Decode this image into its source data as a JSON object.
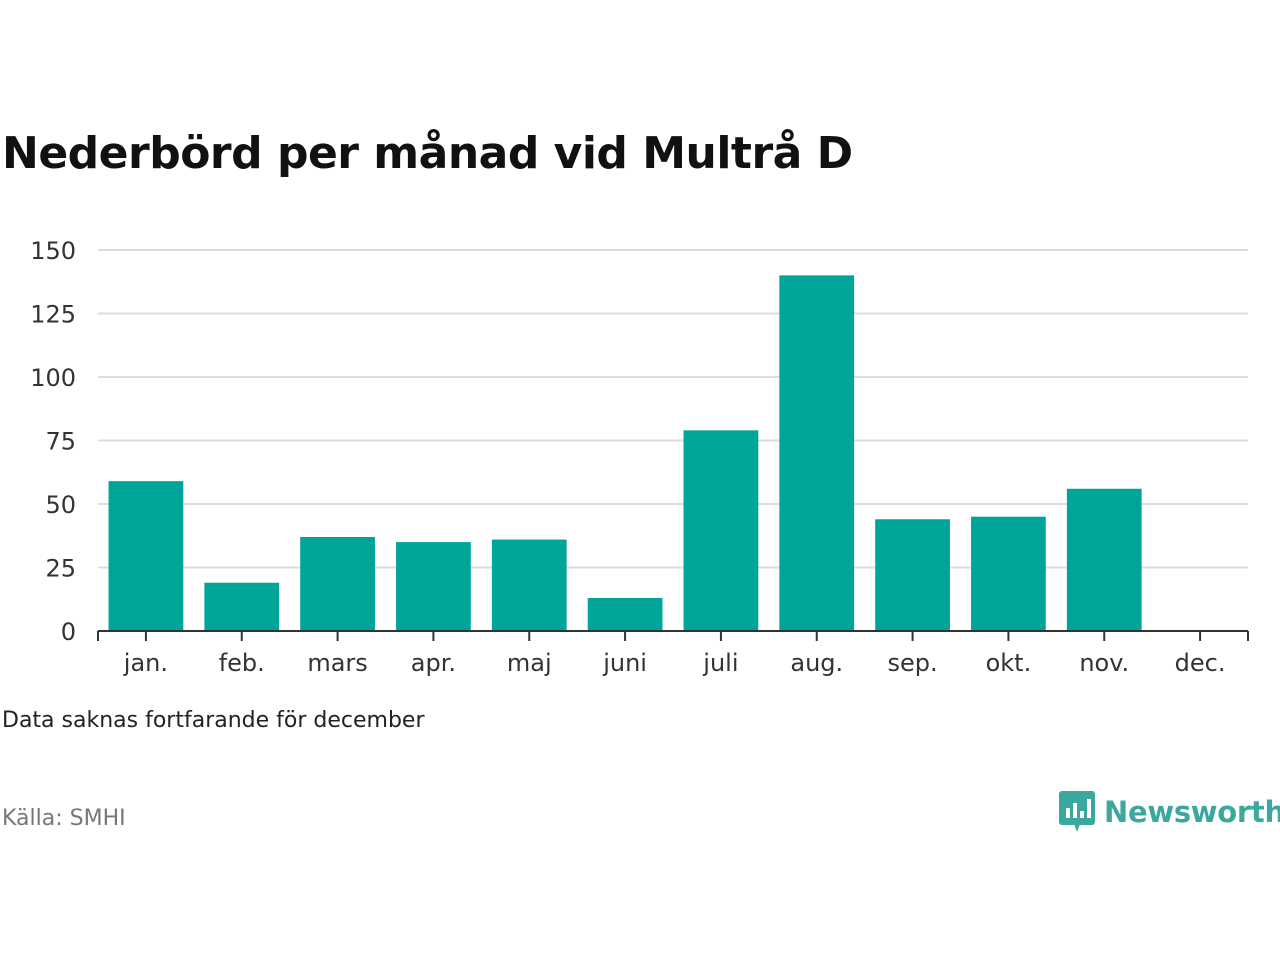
{
  "title": "Nederbörd per månad vid Multrå D",
  "note": "Data saknas fortfarande för december",
  "source": "Källa: SMHI",
  "brand": {
    "name": "Newsworthy",
    "icon": "newsworthy-logo-icon",
    "color": "#3aa89c"
  },
  "chart_data": {
    "type": "bar",
    "categories": [
      "jan.",
      "feb.",
      "mars",
      "apr.",
      "maj",
      "juni",
      "juli",
      "aug.",
      "sep.",
      "okt.",
      "nov.",
      "dec."
    ],
    "values": [
      59,
      19,
      37,
      35,
      36,
      13,
      79,
      140,
      44,
      45,
      56,
      null
    ],
    "ylim": [
      0,
      150
    ],
    "yticks": [
      "0",
      "25",
      "50",
      "75",
      "100",
      "125",
      "150"
    ],
    "grid": true,
    "bar_color": "#00a59a",
    "xlabel": "",
    "ylabel": ""
  }
}
